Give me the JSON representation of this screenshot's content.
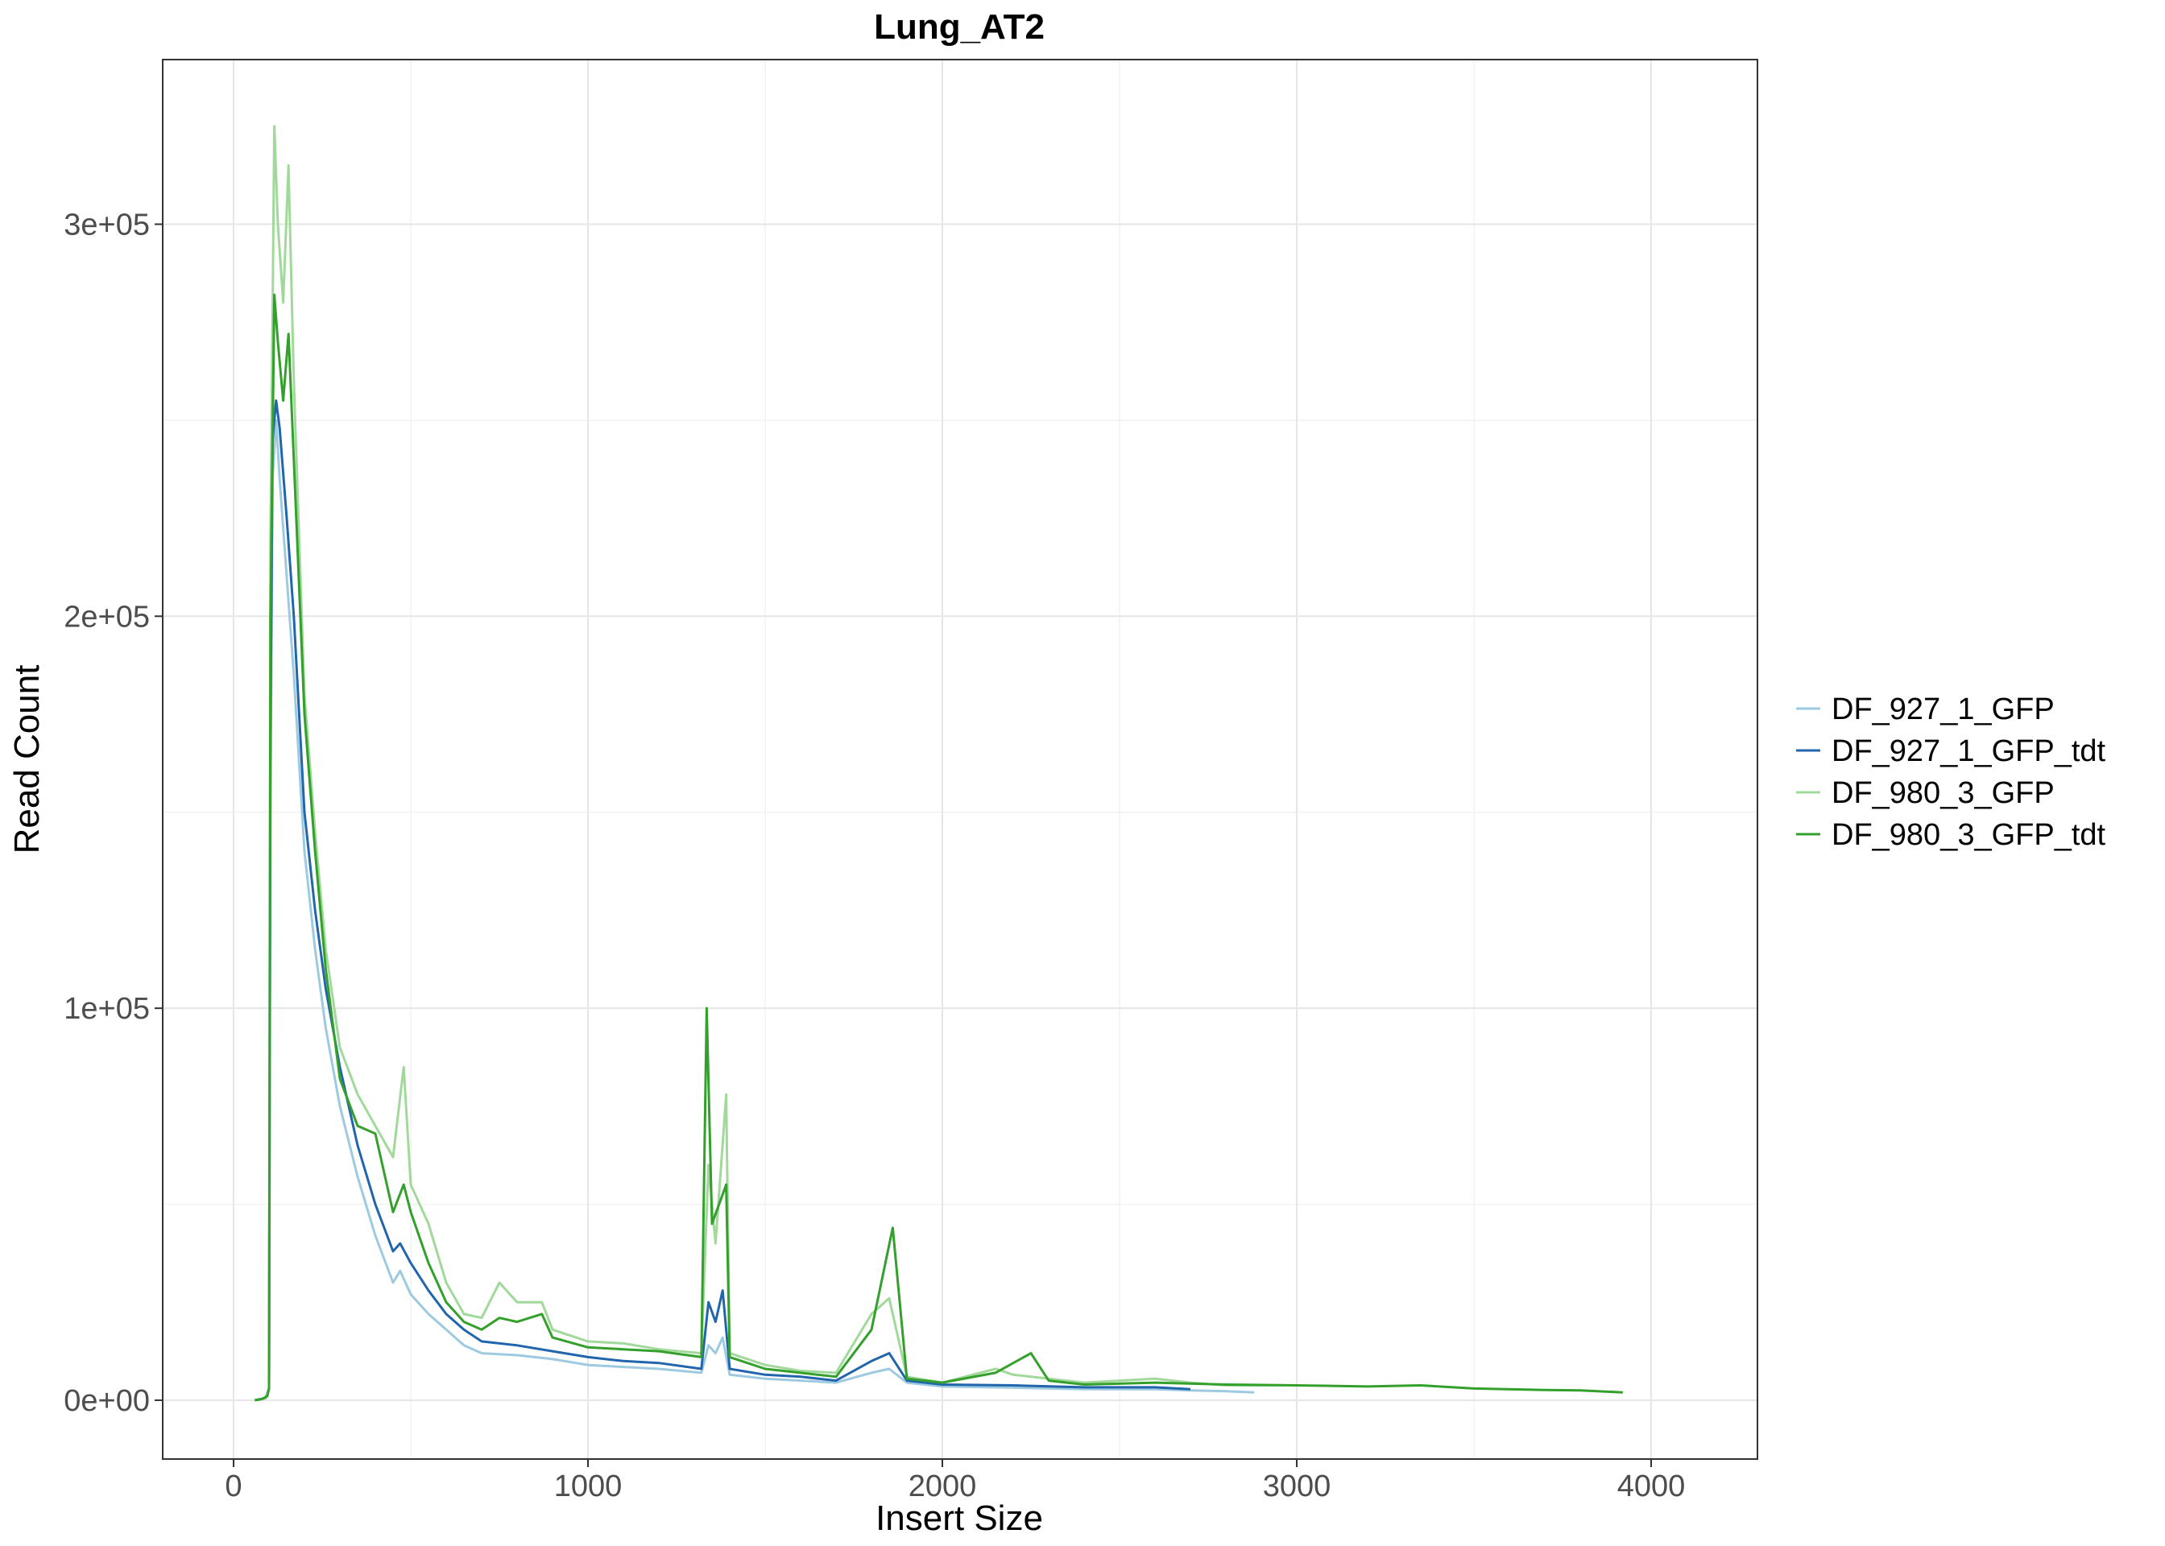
{
  "chart_data": {
    "type": "line",
    "title": "Lung_AT2",
    "xlabel": "Insert Size",
    "ylabel": "Read Count",
    "xlim": [
      -200,
      4300
    ],
    "ylim": [
      -15000,
      342000
    ],
    "x_ticks": [
      0,
      1000,
      2000,
      3000,
      4000
    ],
    "x_tick_labels": [
      "0",
      "1000",
      "2000",
      "3000",
      "4000"
    ],
    "y_ticks": [
      0,
      100000,
      200000,
      300000
    ],
    "y_tick_labels": [
      "0e+00",
      "1e+05",
      "2e+05",
      "3e+05"
    ],
    "grid": true,
    "legend_position": "right",
    "series": [
      {
        "name": "DF_927_1_GFP",
        "color": "#9ecae1",
        "points": [
          [
            60,
            0
          ],
          [
            90,
            500
          ],
          [
            100,
            3000
          ],
          [
            104,
            150000
          ],
          [
            110,
            235000
          ],
          [
            120,
            250000
          ],
          [
            130,
            235000
          ],
          [
            150,
            210000
          ],
          [
            170,
            185000
          ],
          [
            200,
            140000
          ],
          [
            230,
            115000
          ],
          [
            260,
            95000
          ],
          [
            300,
            75000
          ],
          [
            350,
            57000
          ],
          [
            400,
            42000
          ],
          [
            450,
            30000
          ],
          [
            470,
            33000
          ],
          [
            500,
            27000
          ],
          [
            550,
            22000
          ],
          [
            600,
            18000
          ],
          [
            650,
            14000
          ],
          [
            700,
            12000
          ],
          [
            800,
            11500
          ],
          [
            900,
            10500
          ],
          [
            1000,
            9000
          ],
          [
            1100,
            8500
          ],
          [
            1200,
            8000
          ],
          [
            1320,
            7000
          ],
          [
            1340,
            14000
          ],
          [
            1360,
            12000
          ],
          [
            1380,
            16000
          ],
          [
            1400,
            6500
          ],
          [
            1500,
            5500
          ],
          [
            1600,
            5000
          ],
          [
            1700,
            4500
          ],
          [
            1800,
            7000
          ],
          [
            1850,
            8000
          ],
          [
            1900,
            4500
          ],
          [
            2000,
            3500
          ],
          [
            2200,
            3200
          ],
          [
            2400,
            2800
          ],
          [
            2600,
            2800
          ],
          [
            2700,
            2500
          ],
          [
            2800,
            2300
          ],
          [
            2880,
            2000
          ]
        ]
      },
      {
        "name": "DF_927_1_GFP_tdt",
        "color": "#2166ac",
        "points": [
          [
            60,
            0
          ],
          [
            90,
            600
          ],
          [
            100,
            3000
          ],
          [
            104,
            170000
          ],
          [
            110,
            245000
          ],
          [
            120,
            255000
          ],
          [
            130,
            248000
          ],
          [
            150,
            225000
          ],
          [
            170,
            200000
          ],
          [
            200,
            150000
          ],
          [
            230,
            125000
          ],
          [
            260,
            105000
          ],
          [
            300,
            85000
          ],
          [
            350,
            65000
          ],
          [
            400,
            50000
          ],
          [
            450,
            38000
          ],
          [
            470,
            40000
          ],
          [
            500,
            35000
          ],
          [
            550,
            28000
          ],
          [
            600,
            22000
          ],
          [
            650,
            18000
          ],
          [
            700,
            15000
          ],
          [
            800,
            14000
          ],
          [
            900,
            12500
          ],
          [
            1000,
            11000
          ],
          [
            1100,
            10000
          ],
          [
            1200,
            9500
          ],
          [
            1320,
            8000
          ],
          [
            1340,
            25000
          ],
          [
            1360,
            20000
          ],
          [
            1380,
            28000
          ],
          [
            1400,
            8000
          ],
          [
            1500,
            6500
          ],
          [
            1600,
            6000
          ],
          [
            1700,
            5000
          ],
          [
            1800,
            10000
          ],
          [
            1850,
            12000
          ],
          [
            1900,
            5000
          ],
          [
            2000,
            4000
          ],
          [
            2200,
            3800
          ],
          [
            2400,
            3300
          ],
          [
            2600,
            3300
          ],
          [
            2700,
            2800
          ]
        ]
      },
      {
        "name": "DF_980_3_GFP",
        "color": "#a1d99b",
        "points": [
          [
            60,
            0
          ],
          [
            90,
            600
          ],
          [
            100,
            3000
          ],
          [
            104,
            220000
          ],
          [
            115,
            325000
          ],
          [
            125,
            300000
          ],
          [
            140,
            280000
          ],
          [
            155,
            315000
          ],
          [
            170,
            260000
          ],
          [
            200,
            180000
          ],
          [
            230,
            145000
          ],
          [
            260,
            115000
          ],
          [
            300,
            90000
          ],
          [
            350,
            78000
          ],
          [
            400,
            70000
          ],
          [
            450,
            62000
          ],
          [
            480,
            85000
          ],
          [
            500,
            55000
          ],
          [
            550,
            45000
          ],
          [
            600,
            30000
          ],
          [
            650,
            22000
          ],
          [
            700,
            21000
          ],
          [
            750,
            30000
          ],
          [
            800,
            25000
          ],
          [
            870,
            25000
          ],
          [
            900,
            18000
          ],
          [
            1000,
            15000
          ],
          [
            1100,
            14500
          ],
          [
            1200,
            13000
          ],
          [
            1320,
            12000
          ],
          [
            1340,
            60000
          ],
          [
            1360,
            40000
          ],
          [
            1390,
            78000
          ],
          [
            1400,
            12000
          ],
          [
            1500,
            9000
          ],
          [
            1600,
            7500
          ],
          [
            1700,
            7000
          ],
          [
            1800,
            22000
          ],
          [
            1850,
            26000
          ],
          [
            1900,
            6000
          ],
          [
            2000,
            4500
          ],
          [
            2150,
            8000
          ],
          [
            2200,
            6500
          ],
          [
            2400,
            4500
          ],
          [
            2600,
            5500
          ],
          [
            2700,
            4500
          ],
          [
            2800,
            3800
          ],
          [
            2950,
            3800
          ]
        ]
      },
      {
        "name": "DF_980_3_GFP_tdt",
        "color": "#33a02c",
        "points": [
          [
            60,
            0
          ],
          [
            80,
            300
          ],
          [
            95,
            1000
          ],
          [
            100,
            3000
          ],
          [
            104,
            200000
          ],
          [
            115,
            282000
          ],
          [
            125,
            270000
          ],
          [
            140,
            255000
          ],
          [
            155,
            272000
          ],
          [
            170,
            240000
          ],
          [
            200,
            175000
          ],
          [
            230,
            140000
          ],
          [
            260,
            110000
          ],
          [
            300,
            82000
          ],
          [
            350,
            70000
          ],
          [
            400,
            68000
          ],
          [
            450,
            48000
          ],
          [
            480,
            55000
          ],
          [
            500,
            48000
          ],
          [
            550,
            35000
          ],
          [
            600,
            25000
          ],
          [
            650,
            20000
          ],
          [
            700,
            18000
          ],
          [
            750,
            21000
          ],
          [
            800,
            20000
          ],
          [
            870,
            22000
          ],
          [
            900,
            16000
          ],
          [
            1000,
            13500
          ],
          [
            1100,
            13000
          ],
          [
            1200,
            12500
          ],
          [
            1320,
            11000
          ],
          [
            1335,
            100000
          ],
          [
            1350,
            45000
          ],
          [
            1390,
            55000
          ],
          [
            1400,
            11000
          ],
          [
            1500,
            8000
          ],
          [
            1600,
            7000
          ],
          [
            1700,
            6000
          ],
          [
            1800,
            18000
          ],
          [
            1860,
            44000
          ],
          [
            1900,
            5500
          ],
          [
            2000,
            4500
          ],
          [
            2150,
            7000
          ],
          [
            2250,
            12000
          ],
          [
            2300,
            5000
          ],
          [
            2400,
            4000
          ],
          [
            2600,
            4500
          ],
          [
            2800,
            4000
          ],
          [
            3000,
            3800
          ],
          [
            3200,
            3500
          ],
          [
            3350,
            3800
          ],
          [
            3500,
            3000
          ],
          [
            3700,
            2600
          ],
          [
            3800,
            2500
          ],
          [
            3920,
            2000
          ]
        ]
      }
    ]
  }
}
